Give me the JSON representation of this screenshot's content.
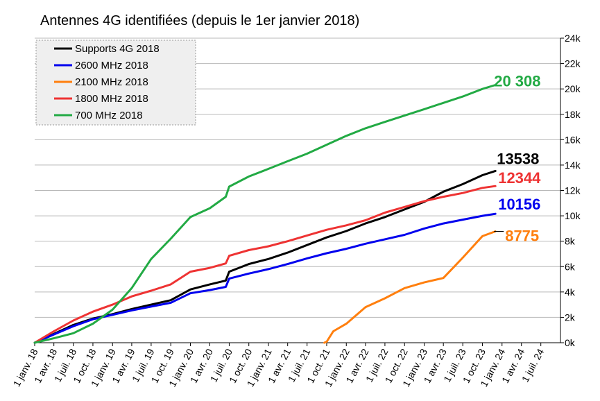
{
  "chart_data": {
    "type": "line",
    "title": "Antennes 4G identifiées (depuis le 1er janvier 2018)",
    "x_tick_labels": [
      "1 janv. 18",
      "1 avr. 18",
      "1 juil. 18",
      "1 oct. 18",
      "1 janv. 19",
      "1 avr. 19",
      "1 juil. 19",
      "1 oct. 19",
      "1 janv. 20",
      "1 avr. 20",
      "1 juil. 20",
      "1 oct. 20",
      "1 janv. 21",
      "1 avr. 21",
      "1 juil. 21",
      "1 oct. 21",
      "1 janv. 22",
      "1 avr. 22",
      "1 juil. 22",
      "1 oct. 22",
      "1 janv. 23",
      "1 avr. 23",
      "1 juil. 23",
      "1 oct. 23",
      "1 janv. 24",
      "1 avr. 24",
      "1 juil. 24"
    ],
    "y_tick_labels": [
      "0k",
      "2k",
      "4k",
      "6k",
      "8k",
      "10k",
      "12k",
      "14k",
      "16k",
      "18k",
      "20k",
      "22k",
      "24k"
    ],
    "ylim": [
      0,
      24000
    ],
    "y_axis_side": "right",
    "grid": "horizontal",
    "legend_position": "top-left",
    "series": [
      {
        "name": "Supports 4G 2018",
        "color": "#000000",
        "end_label": "13538",
        "x": [
          "2018-01-01",
          "2018-04-01",
          "2018-07-01",
          "2018-10-01",
          "2019-01-01",
          "2019-04-01",
          "2019-07-01",
          "2019-10-01",
          "2020-01-01",
          "2020-04-01",
          "2020-06-15",
          "2020-07-01",
          "2020-10-01",
          "2021-01-01",
          "2021-04-01",
          "2021-07-01",
          "2021-10-01",
          "2022-01-01",
          "2022-04-01",
          "2022-07-01",
          "2022-10-01",
          "2023-01-01",
          "2023-04-01",
          "2023-07-01",
          "2023-10-01",
          "2023-12-01"
        ],
        "y": [
          0,
          700,
          1400,
          1900,
          2250,
          2650,
          3000,
          3350,
          4200,
          4600,
          4900,
          5600,
          6200,
          6600,
          7100,
          7700,
          8300,
          8800,
          9400,
          9900,
          10500,
          11100,
          11900,
          12500,
          13200,
          13538
        ]
      },
      {
        "name": "2600 MHz 2018",
        "color": "#0000ee",
        "end_label": "10156",
        "x": [
          "2018-01-01",
          "2018-04-01",
          "2018-07-01",
          "2018-10-01",
          "2019-01-01",
          "2019-04-01",
          "2019-07-01",
          "2019-10-01",
          "2020-01-01",
          "2020-04-01",
          "2020-06-15",
          "2020-07-01",
          "2020-10-01",
          "2021-01-01",
          "2021-04-01",
          "2021-07-01",
          "2021-10-01",
          "2022-01-01",
          "2022-04-01",
          "2022-07-01",
          "2022-10-01",
          "2023-01-01",
          "2023-04-01",
          "2023-07-01",
          "2023-10-01",
          "2023-12-01"
        ],
        "y": [
          0,
          650,
          1300,
          1850,
          2200,
          2550,
          2850,
          3150,
          3900,
          4150,
          4400,
          5050,
          5450,
          5800,
          6200,
          6650,
          7050,
          7400,
          7800,
          8150,
          8500,
          9000,
          9400,
          9700,
          10000,
          10156
        ]
      },
      {
        "name": "2100 MHz 2018",
        "color": "#ff7f0e",
        "end_label": "8775",
        "x": [
          "2021-09-20",
          "2021-10-01",
          "2021-11-01",
          "2022-01-01",
          "2022-04-01",
          "2022-07-01",
          "2022-10-01",
          "2023-01-01",
          "2023-04-01",
          "2023-07-01",
          "2023-10-01",
          "2023-12-01"
        ],
        "y": [
          0,
          80,
          900,
          1500,
          2800,
          3500,
          4300,
          4750,
          5100,
          6700,
          8400,
          8775
        ]
      },
      {
        "name": "1800 MHz 2018",
        "color": "#ee3333",
        "end_label": "12344",
        "x": [
          "2018-01-01",
          "2018-04-01",
          "2018-07-01",
          "2018-10-01",
          "2019-01-01",
          "2019-04-01",
          "2019-07-01",
          "2019-10-01",
          "2020-01-01",
          "2020-04-01",
          "2020-06-15",
          "2020-07-01",
          "2020-10-01",
          "2021-01-01",
          "2021-04-01",
          "2021-07-01",
          "2021-10-01",
          "2022-01-01",
          "2022-04-01",
          "2022-07-01",
          "2022-10-01",
          "2023-01-01",
          "2023-04-01",
          "2023-07-01",
          "2023-10-01",
          "2023-12-01"
        ],
        "y": [
          0,
          900,
          1750,
          2450,
          3000,
          3650,
          4100,
          4600,
          5600,
          5900,
          6250,
          6850,
          7300,
          7600,
          8000,
          8450,
          8900,
          9250,
          9650,
          10250,
          10700,
          11150,
          11500,
          11800,
          12200,
          12344
        ]
      },
      {
        "name": "700 MHz 2018",
        "color": "#22aa44",
        "end_label": "20 308",
        "x": [
          "2018-01-01",
          "2018-04-01",
          "2018-07-01",
          "2018-10-01",
          "2019-01-01",
          "2019-04-01",
          "2019-07-01",
          "2019-10-01",
          "2020-01-01",
          "2020-04-01",
          "2020-06-15",
          "2020-07-01",
          "2020-10-01",
          "2021-01-01",
          "2021-04-01",
          "2021-07-01",
          "2021-10-01",
          "2022-01-01",
          "2022-04-01",
          "2022-07-01",
          "2022-10-01",
          "2023-01-01",
          "2023-04-01",
          "2023-07-01",
          "2023-10-01",
          "2023-12-01"
        ],
        "y": [
          0,
          350,
          750,
          1500,
          2600,
          4300,
          6600,
          8200,
          9900,
          10600,
          11500,
          12300,
          13100,
          13700,
          14300,
          14900,
          15600,
          16300,
          16900,
          17400,
          17900,
          18400,
          18900,
          19400,
          20000,
          20308
        ]
      }
    ]
  }
}
